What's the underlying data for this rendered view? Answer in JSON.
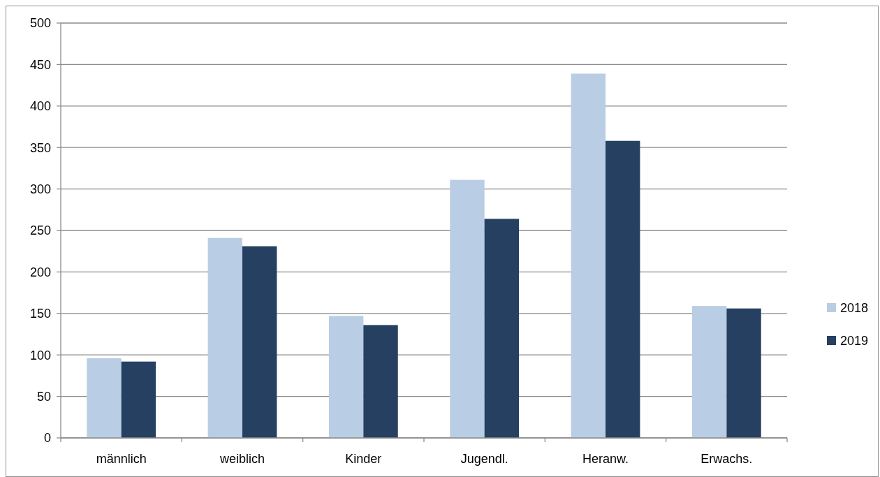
{
  "chart_data": {
    "type": "bar",
    "categories": [
      "männlich",
      "weiblich",
      "Kinder",
      "Jugendl.",
      "Heranw.",
      "Erwachs."
    ],
    "series": [
      {
        "name": "2018",
        "color": "#b9cde5",
        "values": [
          96,
          241,
          147,
          311,
          439,
          159
        ]
      },
      {
        "name": "2019",
        "color": "#254061",
        "values": [
          92,
          231,
          136,
          264,
          358,
          156
        ]
      }
    ],
    "ylim": [
      0,
      500
    ],
    "yticks": [
      0,
      50,
      100,
      150,
      200,
      250,
      300,
      350,
      400,
      450,
      500
    ],
    "grid": "y",
    "legend": "right"
  }
}
